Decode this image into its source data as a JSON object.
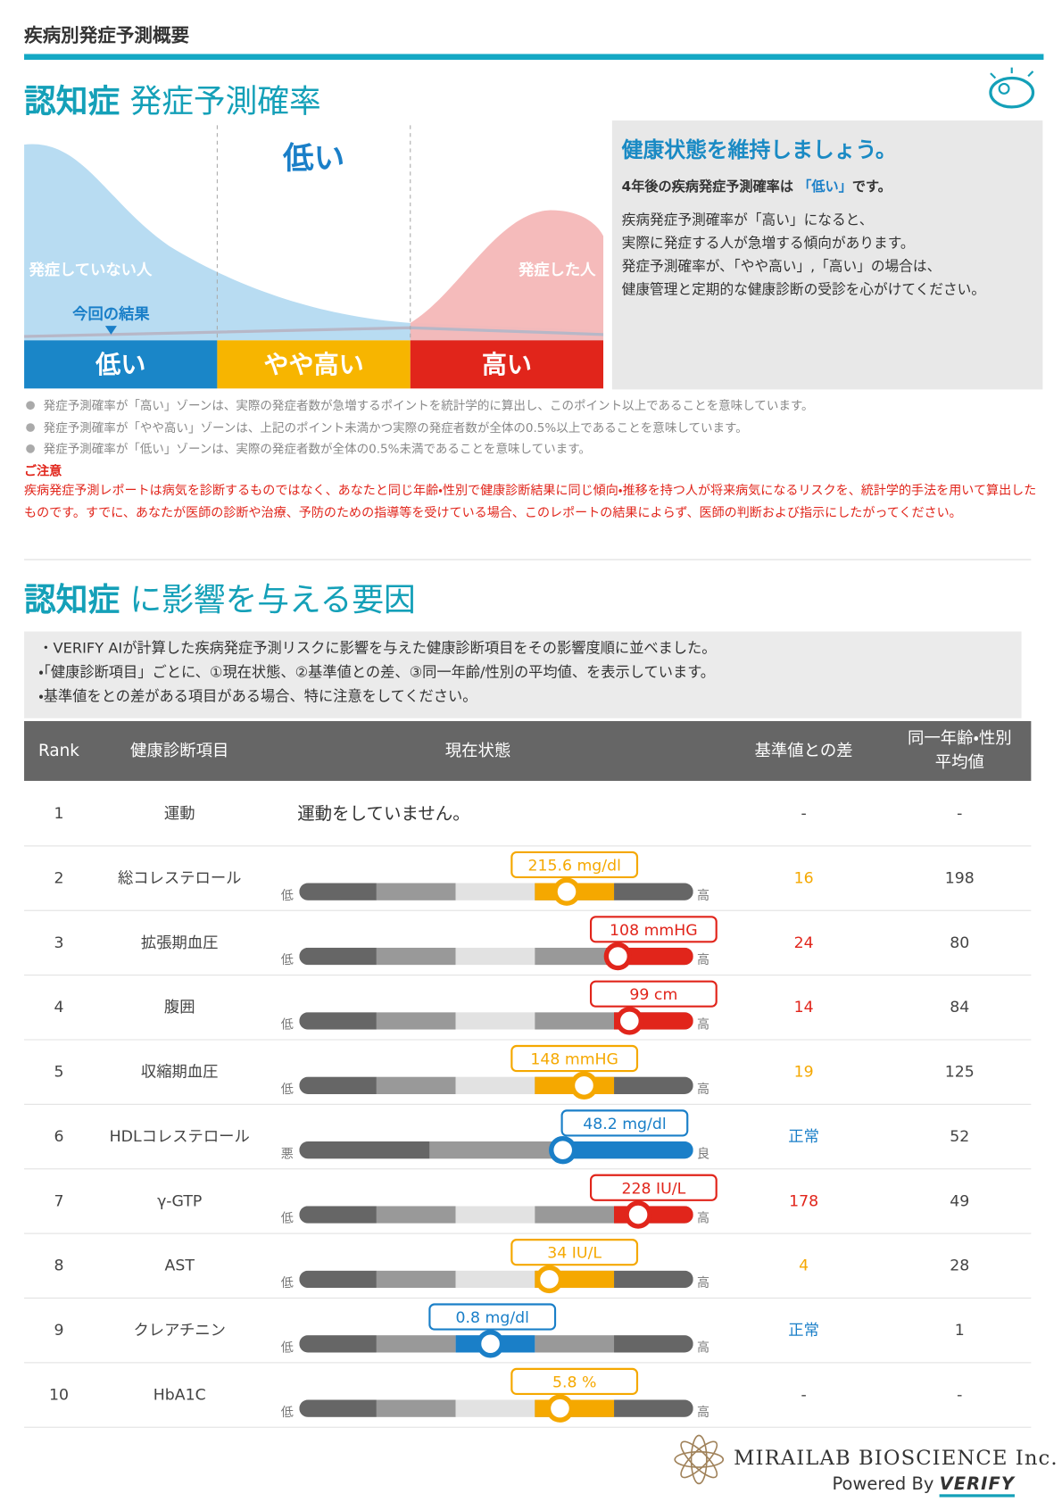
{
  "header": {
    "title": "疾病別発症予測概要"
  },
  "prediction": {
    "title_disease": "認知症",
    "title_rest": "発症予測確率",
    "result": "低い",
    "curve_left": "発症していない人",
    "curve_right": "発症した人",
    "marker": "今回の結果",
    "zones": [
      "低い",
      "やや高い",
      "高い"
    ]
  },
  "advice": {
    "heading": "健康状態を維持しましょう。",
    "summary_pre": "4年後の疾病発症予測確率は",
    "summary_level": "「低い」",
    "summary_post": "です。",
    "body": [
      "疾病発症予測確率が「高い」になると、",
      "実際に発症する人が急増する傾向があります。",
      "発症予測確率が、「やや高い」,「高い」の場合は、",
      "健康管理と定期的な健康診断の受診を心がけてください。"
    ]
  },
  "notes": [
    "発症予測確率が「高い」ゾーンは、実際の発症者数が急増するポイントを統計学的に算出し、このポイント以上であることを意味しています。",
    "発症予測確率が「やや高い」ゾーンは、上記のポイント未満かつ実際の発症者数が全体の0.5%以上であることを意味しています。",
    "発症予測確率が「低い」ゾーンは、実際の発症者数が全体の0.5%未満であることを意味しています。"
  ],
  "caution": {
    "title": "ご注意",
    "text": "疾病発症予測レポートは病気を診断するものではなく、あなたと同じ年齢・性別で健康診断結果に同じ傾向・推移を持つ人が将来病気になるリスクを、統計学的手法を用いて算出したものです。すでに、あなたが医師の診断や治療、予防のための指導等を受けている場合、このレポートの結果によらず、医師の判断および指示にしたがってください。"
  },
  "factors": {
    "title_disease": "認知症",
    "title_rest": "に影響を与える要因",
    "intro": [
      "・VERIFY AIが計算した疾病発症予測リスクに影響を与えた健康診断項目をその影響度順に並べました。",
      "・「健康診断項目」ごとに、①現在状態、②基準値との差、③同一年齢/性別の平均値、を表示しています。",
      "・基準値をとの差がある項目がある場合、特に注意をしてください。"
    ]
  },
  "table": {
    "headers": [
      "Rank",
      "健康診断項目",
      "現在状態",
      "基準値との差"
    ],
    "avg_header": [
      "同一年齢・性別",
      "平均値"
    ],
    "rows": [
      {
        "rank": 1,
        "item": "運動",
        "status": "運動をしていません。",
        "diff": "-",
        "average": "-"
      },
      {
        "rank": 2,
        "item": "総コレステロール",
        "value": "215.6 mg/dl",
        "low": "低",
        "high": "高",
        "diff": 16,
        "average": 198,
        "color": "#f5a800"
      },
      {
        "rank": 3,
        "item": "拡張期血圧",
        "value": "108 mmHG",
        "low": "低",
        "high": "高",
        "diff": 24,
        "average": 80,
        "color": "#e1251b"
      },
      {
        "rank": 4,
        "item": "腹囲",
        "value": "99 cm",
        "low": "低",
        "high": "高",
        "diff": 14,
        "average": 84,
        "color": "#e1251b"
      },
      {
        "rank": 5,
        "item": "収縮期血圧",
        "value": "148 mmHG",
        "low": "低",
        "high": "高",
        "diff": 19,
        "average": 125,
        "color": "#f5a800"
      },
      {
        "rank": 6,
        "item": "HDLコレステロール",
        "value": "48.2 mg/dl",
        "low": "悪",
        "high": "良",
        "diff": "正常",
        "average": 52,
        "color": "#1a7fc8"
      },
      {
        "rank": 7,
        "item": "γ-GTP",
        "value": "228 IU/L",
        "low": "低",
        "high": "高",
        "diff": 178,
        "average": 49,
        "color": "#e1251b"
      },
      {
        "rank": 8,
        "item": "AST",
        "value": "34 IU/L",
        "low": "低",
        "high": "高",
        "diff": 4,
        "average": 28,
        "color": "#f5a800"
      },
      {
        "rank": 9,
        "item": "クレアチニン",
        "value": "0.8 mg/dl",
        "low": "低",
        "high": "高",
        "diff": "正常",
        "average": 1,
        "color": "#1a7fc8"
      },
      {
        "rank": 10,
        "item": "HbA1C",
        "value": "5.8 %",
        "low": "低",
        "high": "高",
        "diff": "-",
        "average": "-",
        "color": "#f5a800"
      }
    ]
  },
  "footer": {
    "company": "MIRAILAB BIOSCIENCE Inc.",
    "powered": "Powered By",
    "brand": "VERIFY"
  }
}
